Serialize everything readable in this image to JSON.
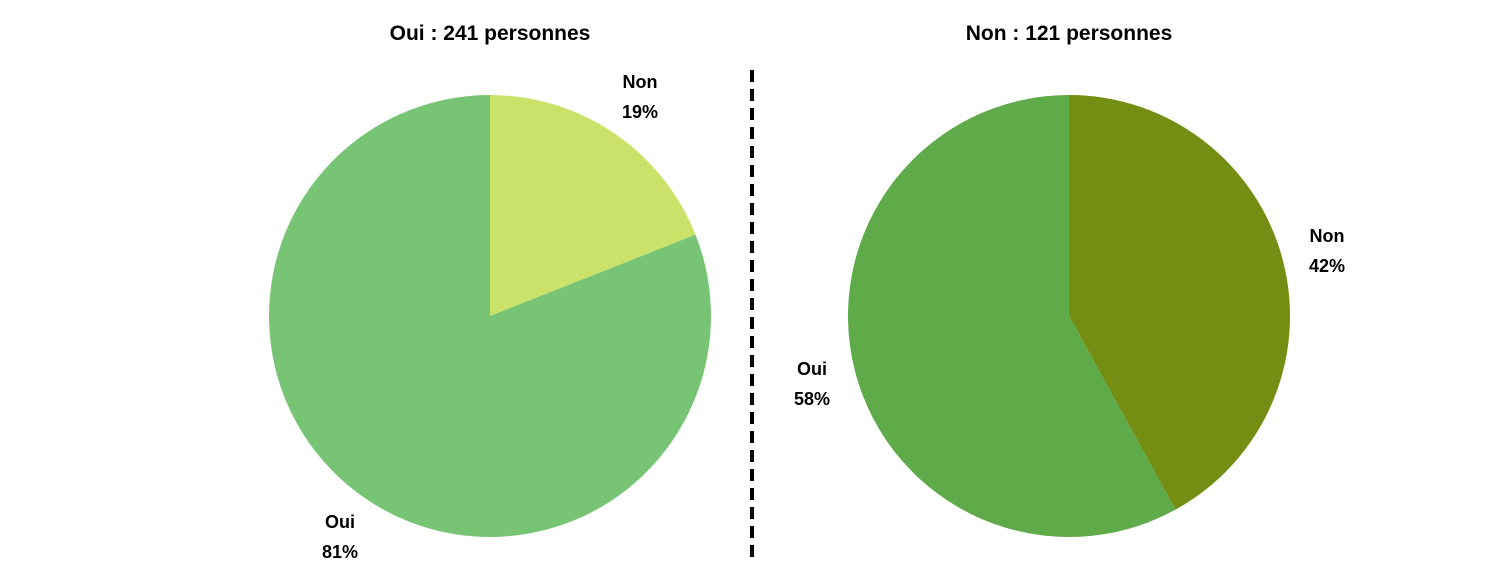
{
  "chart_data": [
    {
      "type": "pie",
      "title": "Oui : 241 personnes",
      "start_angle_deg": 0,
      "direction": "clockwise",
      "slices": [
        {
          "label": "Non",
          "value": 19,
          "pct_text": "19%",
          "color": "#cbe26a"
        },
        {
          "label": "Oui",
          "value": 81,
          "pct_text": "81%",
          "color": "#77c574"
        }
      ]
    },
    {
      "type": "pie",
      "title": "Non : 121 personnes",
      "start_angle_deg": 0,
      "direction": "clockwise",
      "slices": [
        {
          "label": "Non",
          "value": 42,
          "pct_text": "42%",
          "color": "#738e12"
        },
        {
          "label": "Oui",
          "value": 58,
          "pct_text": "58%",
          "color": "#5faa49"
        }
      ]
    }
  ],
  "divider": {
    "style": "dashed",
    "color": "#000000"
  }
}
